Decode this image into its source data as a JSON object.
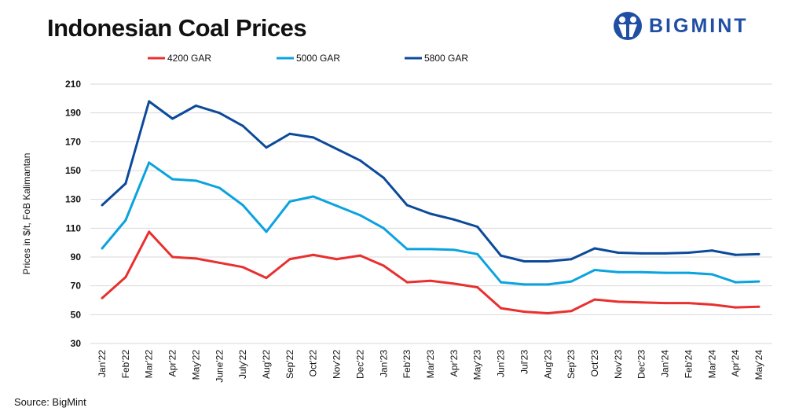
{
  "title": "Indonesian Coal Prices",
  "logo": {
    "text": "BIGMINT",
    "color": "#1f4ea3"
  },
  "source": "Source: BigMint",
  "chart_data": {
    "type": "line",
    "title": "Indonesian Coal Prices",
    "xlabel": "",
    "ylabel": "Prices in $/t, FoB Kalimantan",
    "ylim": [
      30,
      210
    ],
    "yticks": [
      30,
      50,
      70,
      90,
      110,
      130,
      150,
      170,
      190,
      210
    ],
    "grid": true,
    "legend_placement": "top",
    "categories": [
      "Jan'22",
      "Feb'22",
      "Mar'22",
      "Apr'22",
      "May'22",
      "June'22",
      "July'22",
      "Aug'22",
      "Sep'22",
      "Oct'22",
      "Nov'22",
      "Dec'22",
      "Jan'23",
      "Feb'23",
      "Mar'23",
      "Apr'23",
      "May'23",
      "Jun'23",
      "Jul'23",
      "Aug'23",
      "Sep'23",
      "Oct'23",
      "Nov'23",
      "Dec'23",
      "Jan'24",
      "Feb'24",
      "Mar'24",
      "Apr'24",
      "May'24"
    ],
    "series": [
      {
        "name": "4200 GAR",
        "color": "#e8302f",
        "values": [
          61.5,
          76,
          107.5,
          90,
          89,
          86,
          83,
          75.5,
          88.5,
          91.5,
          88.5,
          91,
          84,
          72.5,
          73.5,
          71.5,
          69,
          54.5,
          52,
          51,
          52.5,
          60.5,
          59,
          58.5,
          58,
          58,
          57,
          55,
          55.5
        ]
      },
      {
        "name": "5000 GAR",
        "color": "#0aa3df",
        "values": [
          96,
          115.5,
          155.5,
          144,
          143,
          138,
          126,
          107.5,
          128.5,
          132,
          125.5,
          119,
          110,
          95.5,
          95.5,
          95,
          92,
          72.5,
          71,
          71,
          73,
          81,
          79.5,
          79.5,
          79,
          79,
          78,
          72.5,
          73
        ]
      },
      {
        "name": "5800 GAR",
        "color": "#0b4a9a",
        "values": [
          126,
          141,
          198,
          186,
          195,
          190,
          181,
          166,
          175.5,
          173,
          165,
          157,
          145,
          126,
          120,
          116,
          111,
          91,
          87,
          87,
          88.5,
          96,
          93,
          92.5,
          92.5,
          93,
          94.5,
          91.5,
          92
        ]
      }
    ]
  }
}
